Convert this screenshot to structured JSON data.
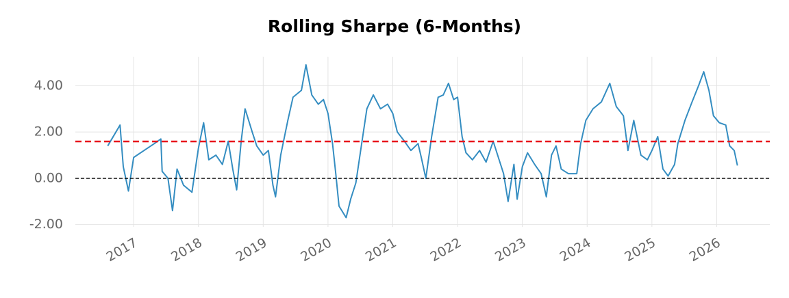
{
  "chart_data": {
    "type": "line",
    "title": "Rolling Sharpe (6-Months)",
    "x": [
      2016.6,
      2016.79,
      2016.84,
      2016.92,
      2017.0,
      2017.16,
      2017.32,
      2017.42,
      2017.44,
      2017.53,
      2017.6,
      2017.67,
      2017.77,
      2017.9,
      2018.0,
      2018.08,
      2018.16,
      2018.27,
      2018.37,
      2018.46,
      2018.53,
      2018.59,
      2018.66,
      2018.72,
      2018.83,
      2018.9,
      2019.0,
      2019.08,
      2019.15,
      2019.19,
      2019.27,
      2019.38,
      2019.46,
      2019.59,
      2019.66,
      2019.75,
      2019.85,
      2019.93,
      2020.0,
      2020.07,
      2020.12,
      2020.17,
      2020.28,
      2020.35,
      2020.43,
      2020.52,
      2020.6,
      2020.7,
      2020.81,
      2020.92,
      2021.0,
      2021.07,
      2021.18,
      2021.28,
      2021.39,
      2021.44,
      2021.51,
      2021.6,
      2021.7,
      2021.78,
      2021.86,
      2021.94,
      2022.0,
      2022.07,
      2022.13,
      2022.23,
      2022.34,
      2022.44,
      2022.55,
      2022.63,
      2022.71,
      2022.78,
      2022.87,
      2022.92,
      2023.0,
      2023.08,
      2023.19,
      2023.29,
      2023.37,
      2023.45,
      2023.52,
      2023.6,
      2023.71,
      2023.84,
      2023.9,
      2023.98,
      2024.09,
      2024.22,
      2024.35,
      2024.45,
      2024.56,
      2024.63,
      2024.72,
      2024.83,
      2024.93,
      2025.0,
      2025.09,
      2025.17,
      2025.25,
      2025.35,
      2025.4,
      2025.51,
      2025.62,
      2025.72,
      2025.8,
      2025.88,
      2025.95,
      2026.04,
      2026.14,
      2026.2,
      2026.27,
      2026.32
    ],
    "values": [
      1.4,
      2.3,
      0.5,
      -0.55,
      0.9,
      1.2,
      1.5,
      1.7,
      0.3,
      0.0,
      -1.4,
      0.4,
      -0.3,
      -0.6,
      1.3,
      2.4,
      0.8,
      1.0,
      0.6,
      1.6,
      0.4,
      -0.5,
      1.6,
      3.0,
      2.0,
      1.4,
      1.0,
      1.2,
      -0.3,
      -0.8,
      1.0,
      2.5,
      3.5,
      3.8,
      4.9,
      3.6,
      3.2,
      3.4,
      2.8,
      1.5,
      0.2,
      -1.2,
      -1.7,
      -0.9,
      -0.2,
      1.5,
      3.0,
      3.6,
      3.0,
      3.2,
      2.8,
      2.0,
      1.6,
      1.2,
      1.5,
      0.9,
      0.0,
      1.8,
      3.5,
      3.6,
      4.1,
      3.4,
      3.5,
      1.8,
      1.1,
      0.8,
      1.2,
      0.7,
      1.6,
      0.9,
      0.2,
      -1.0,
      0.6,
      -0.9,
      0.5,
      1.1,
      0.6,
      0.2,
      -0.8,
      1.0,
      1.4,
      0.4,
      0.2,
      0.2,
      1.5,
      2.5,
      3.0,
      3.3,
      4.1,
      3.1,
      2.7,
      1.2,
      2.5,
      1.0,
      0.8,
      1.2,
      1.8,
      0.4,
      0.1,
      0.6,
      1.5,
      2.5,
      3.3,
      4.0,
      4.6,
      3.8,
      2.7,
      2.4,
      2.3,
      1.4,
      1.2,
      0.55
    ],
    "color": "#348dc1",
    "xlim": [
      2016.1,
      2026.82
    ],
    "xticks": [
      2017,
      2018,
      2019,
      2020,
      2021,
      2022,
      2023,
      2024,
      2025,
      2026
    ],
    "ylim": [
      -2.1,
      5.25
    ],
    "yticks": [
      {
        "value": -2,
        "label": "-2.00"
      },
      {
        "value": 0,
        "label": "0.00"
      },
      {
        "value": 2,
        "label": "2.00"
      },
      {
        "value": 4,
        "label": "4.00"
      }
    ],
    "hlines": [
      {
        "value": 1.59,
        "color": "#e8141c"
      },
      {
        "value": 0,
        "color": "#000000"
      }
    ],
    "grid": true
  }
}
